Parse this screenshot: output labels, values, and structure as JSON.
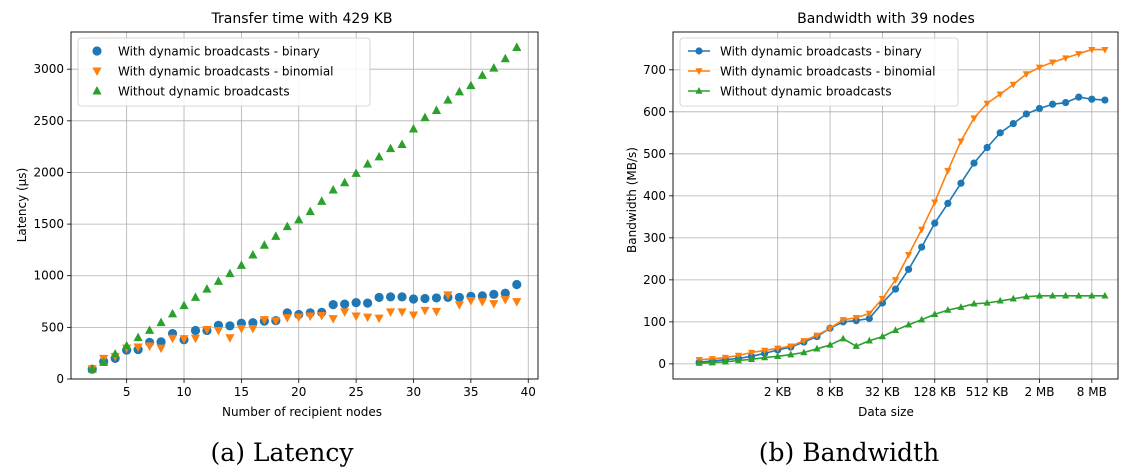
{
  "captions": [
    "(a) Latency",
    "(b) Bandwidth"
  ],
  "colors": {
    "binary": "#1f77b4",
    "binomial": "#ff7f0e",
    "without": "#2ca02c",
    "grid": "#b0b0b0"
  },
  "chart_data": [
    {
      "type": "scatter",
      "title": "Transfer time with 429 KB",
      "xlabel": "Number of recipient nodes",
      "ylabel": "Latency (µs)",
      "xlim": [
        0.15,
        40.85
      ],
      "ylim": [
        0,
        3360
      ],
      "xticks": [
        5,
        10,
        15,
        20,
        25,
        30,
        35,
        40
      ],
      "xtick_labels": [
        "5",
        "10",
        "15",
        "20",
        "25",
        "30",
        "35",
        "40"
      ],
      "yticks": [
        0,
        500,
        1000,
        1500,
        2000,
        2500,
        3000
      ],
      "ytick_labels": [
        "0",
        "500",
        "1000",
        "1500",
        "2000",
        "2500",
        "3000"
      ],
      "grid": true,
      "legend_position": "top-left",
      "x": [
        2,
        3,
        4,
        5,
        6,
        7,
        8,
        9,
        10,
        11,
        12,
        13,
        14,
        15,
        16,
        17,
        18,
        19,
        20,
        21,
        22,
        23,
        24,
        25,
        26,
        27,
        28,
        29,
        30,
        31,
        32,
        33,
        34,
        35,
        36,
        37,
        38,
        39
      ],
      "series": [
        {
          "name": "With dynamic broadcasts - binary",
          "marker": "circle",
          "color": "#1f77b4",
          "values": [
            95,
            170,
            200,
            280,
            285,
            355,
            360,
            440,
            380,
            470,
            470,
            520,
            515,
            540,
            545,
            560,
            565,
            640,
            625,
            640,
            645,
            720,
            725,
            740,
            735,
            790,
            795,
            795,
            775,
            780,
            785,
            790,
            790,
            800,
            805,
            820,
            830,
            915
          ]
        },
        {
          "name": "With dynamic broadcasts - binomial",
          "marker": "triangle-down",
          "color": "#ff7f0e",
          "values": [
            100,
            200,
            220,
            300,
            310,
            320,
            300,
            395,
            390,
            395,
            480,
            470,
            400,
            490,
            490,
            575,
            565,
            595,
            600,
            610,
            615,
            585,
            650,
            610,
            600,
            590,
            650,
            650,
            620,
            665,
            655,
            815,
            720,
            760,
            750,
            730,
            770,
            750
          ]
        },
        {
          "name": "Without dynamic broadcasts",
          "marker": "triangle-up",
          "color": "#2ca02c",
          "values": [
            95,
            160,
            240,
            320,
            400,
            470,
            545,
            630,
            710,
            790,
            870,
            945,
            1020,
            1100,
            1200,
            1295,
            1380,
            1475,
            1540,
            1620,
            1720,
            1830,
            1900,
            1990,
            2080,
            2150,
            2230,
            2270,
            2420,
            2530,
            2600,
            2700,
            2780,
            2840,
            2940,
            3010,
            3100,
            3210
          ]
        }
      ]
    },
    {
      "type": "line",
      "title": "Bandwidth with 39 nodes",
      "xlabel": "Data size",
      "ylabel": "Bandwidth (MB/s)",
      "x_scale": "log2",
      "x_unit": "bytes",
      "xlim": [
        128,
        16777216
      ],
      "ylim": [
        -36,
        790
      ],
      "xticks": [
        2048,
        8192,
        32768,
        131072,
        524288,
        2097152,
        8388608
      ],
      "xtick_labels": [
        "2 KB",
        "8 KB",
        "32 KB",
        "128 KB",
        "512 KB",
        "2 MB",
        "8 MB"
      ],
      "yticks": [
        0,
        100,
        200,
        300,
        400,
        500,
        600,
        700
      ],
      "ytick_labels": [
        "0",
        "100",
        "200",
        "300",
        "400",
        "500",
        "600",
        "700"
      ],
      "grid": true,
      "legend_position": "top-left",
      "x": [
        256,
        362,
        512,
        724,
        1024,
        1448,
        2048,
        2896,
        4096,
        5793,
        8192,
        11585,
        16384,
        23170,
        32768,
        46341,
        65536,
        92682,
        131072,
        185364,
        262144,
        370728,
        524288,
        741455,
        1048576,
        1482910,
        2097152,
        2965821,
        4194304,
        5931642,
        8388608,
        11863283
      ],
      "series": [
        {
          "name": "With dynamic broadcasts - binary",
          "marker": "circle",
          "color": "#1f77b4",
          "values": [
            4,
            7,
            10,
            13,
            18,
            25,
            33,
            40,
            52,
            65,
            85,
            100,
            103,
            108,
            145,
            178,
            225,
            278,
            335,
            382,
            430,
            478,
            515,
            550,
            572,
            595,
            608,
            618,
            622,
            635,
            630,
            628
          ]
        },
        {
          "name": "With dynamic broadcasts - binomial",
          "marker": "triangle-down",
          "color": "#ff7f0e",
          "values": [
            10,
            12,
            15,
            20,
            27,
            32,
            37,
            42,
            55,
            68,
            85,
            105,
            110,
            120,
            155,
            200,
            260,
            320,
            385,
            460,
            530,
            585,
            620,
            642,
            665,
            690,
            706,
            718,
            728,
            738,
            748,
            748
          ]
        },
        {
          "name": "Without dynamic broadcasts",
          "marker": "triangle-up",
          "color": "#2ca02c",
          "values": [
            2,
            3,
            5,
            8,
            11,
            15,
            18,
            22,
            27,
            36,
            45,
            60,
            42,
            55,
            65,
            80,
            93,
            105,
            118,
            128,
            135,
            143,
            145,
            150,
            155,
            160,
            162,
            162,
            162,
            162,
            162,
            162
          ]
        }
      ]
    }
  ]
}
